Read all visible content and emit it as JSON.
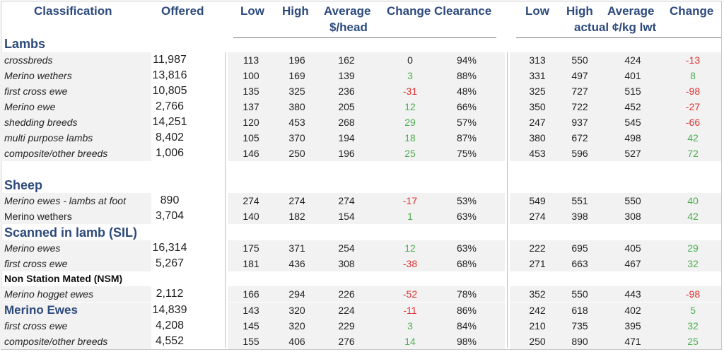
{
  "headers": {
    "classification": "Classification",
    "offered": "Offered",
    "low": "Low",
    "high": "High",
    "average": "Average",
    "change": "Change",
    "clearance": "Clearance",
    "head_unit": "$/head",
    "low2": "Low",
    "high2": "High",
    "average2": "Average",
    "change2": "Change",
    "kg_unit": "actual ¢/kg lwt"
  },
  "sections": {
    "lambs": "Lambs",
    "sheep": "Sheep",
    "sil": "Scanned in lamb (SIL)",
    "nsm": "Non Station Mated (NSM)"
  },
  "rows": [
    {
      "label": "crossbreds",
      "offered": "11,987",
      "low": "113",
      "high": "196",
      "avg": "162",
      "chg": "0",
      "clr": "94%",
      "low2": "313",
      "high2": "550",
      "avg2": "424",
      "chg2": "-13"
    },
    {
      "label": "Merino wethers",
      "offered": "13,816",
      "low": "100",
      "high": "169",
      "avg": "139",
      "chg": "3",
      "clr": "88%",
      "low2": "331",
      "high2": "497",
      "avg2": "401",
      "chg2": "8"
    },
    {
      "label": "first cross ewe",
      "offered": "10,805",
      "low": "135",
      "high": "325",
      "avg": "236",
      "chg": "-31",
      "clr": "48%",
      "low2": "325",
      "high2": "727",
      "avg2": "515",
      "chg2": "-98"
    },
    {
      "label": "Merino ewe",
      "offered": "2,766",
      "low": "137",
      "high": "380",
      "avg": "205",
      "chg": "12",
      "clr": "66%",
      "low2": "350",
      "high2": "722",
      "avg2": "452",
      "chg2": "-27"
    },
    {
      "label": "shedding breeds",
      "offered": "14,251",
      "low": "120",
      "high": "453",
      "avg": "268",
      "chg": "29",
      "clr": "57%",
      "low2": "247",
      "high2": "937",
      "avg2": "545",
      "chg2": "-66"
    },
    {
      "label": "multi purpose lambs",
      "offered": "8,402",
      "low": "105",
      "high": "370",
      "avg": "194",
      "chg": "18",
      "clr": "87%",
      "low2": "380",
      "high2": "672",
      "avg2": "498",
      "chg2": "42"
    },
    {
      "label": "composite/other breeds",
      "offered": "1,006",
      "low": "146",
      "high": "250",
      "avg": "196",
      "chg": "25",
      "clr": "75%",
      "low2": "453",
      "high2": "596",
      "avg2": "527",
      "chg2": "72"
    },
    {
      "label": "Merino ewes - lambs at foot",
      "offered": "890",
      "low": "274",
      "high": "274",
      "avg": "274",
      "chg": "-17",
      "clr": "53%",
      "low2": "549",
      "high2": "551",
      "avg2": "550",
      "chg2": "40"
    },
    {
      "label": "Merino wethers",
      "offered": "3,704",
      "low": "140",
      "high": "182",
      "avg": "154",
      "chg": "1",
      "clr": "63%",
      "low2": "274",
      "high2": "398",
      "avg2": "308",
      "chg2": "42"
    },
    {
      "label": "Merino ewes",
      "offered": "16,314",
      "low": "175",
      "high": "371",
      "avg": "254",
      "chg": "12",
      "clr": "63%",
      "low2": "222",
      "high2": "695",
      "avg2": "405",
      "chg2": "29"
    },
    {
      "label": "first cross ewe",
      "offered": "5,267",
      "low": "181",
      "high": "436",
      "avg": "308",
      "chg": "-38",
      "clr": "68%",
      "low2": "271",
      "high2": "663",
      "avg2": "467",
      "chg2": "32"
    },
    {
      "label": "Merino hogget ewes",
      "offered": "2,112",
      "low": "166",
      "high": "294",
      "avg": "226",
      "chg": "-52",
      "clr": "78%",
      "low2": "352",
      "high2": "550",
      "avg2": "443",
      "chg2": "-98"
    },
    {
      "label": "Merino Ewes",
      "offered": "14,839",
      "low": "143",
      "high": "320",
      "avg": "224",
      "chg": "-11",
      "clr": "86%",
      "low2": "242",
      "high2": "618",
      "avg2": "402",
      "chg2": "5"
    },
    {
      "label": "first cross ewe",
      "offered": "4,208",
      "low": "145",
      "high": "320",
      "avg": "229",
      "chg": "3",
      "clr": "84%",
      "low2": "210",
      "high2": "735",
      "avg2": "395",
      "chg2": "32"
    },
    {
      "label": "composite/other breeds",
      "offered": "4,552",
      "low": "155",
      "high": "406",
      "avg": "276",
      "chg": "14",
      "clr": "98%",
      "low2": "250",
      "high2": "890",
      "avg2": "471",
      "chg2": "25"
    }
  ],
  "colors": {
    "header": "#2c4a7c",
    "negative": "#e03131",
    "positive": "#4caf50"
  }
}
